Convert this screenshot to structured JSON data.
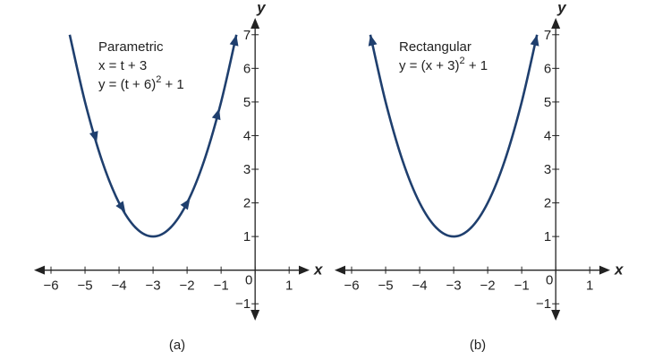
{
  "chart_data": [
    {
      "type": "line",
      "annotation": {
        "title": "Parametric",
        "line1": "x = t + 3",
        "line2": [
          "y = (t + 6)",
          "2",
          " + 1"
        ]
      },
      "caption": "(a)",
      "xlabel": "x",
      "ylabel": "y",
      "x": [
        -5.45,
        -5,
        -4.5,
        -4,
        -3.5,
        -3,
        -2.5,
        -2,
        -1.5,
        -1,
        -0.55
      ],
      "series": [
        {
          "color": "#1f3f6e",
          "values": [
            7.0,
            5,
            3.25,
            2,
            1.25,
            1,
            1.25,
            2,
            3.25,
            5,
            7.0
          ]
        }
      ],
      "direction_arrows_x": [
        -4.7,
        -3.9,
        -2.0,
        -1.1
      ],
      "end_arrows": "end",
      "xlim": [
        -6.5,
        1.6
      ],
      "ylim": [
        -1.5,
        7.5
      ],
      "xticks": [
        {
          "value": -6,
          "label": "−6"
        },
        {
          "value": -5,
          "label": "−5"
        },
        {
          "value": -4,
          "label": "−4"
        },
        {
          "value": -3,
          "label": "−3"
        },
        {
          "value": -2,
          "label": "−2"
        },
        {
          "value": -1,
          "label": "−1"
        },
        0,
        1
      ],
      "yticks": [
        {
          "value": -1,
          "label": "−1"
        },
        1,
        2,
        3,
        4,
        5,
        6,
        7
      ]
    },
    {
      "type": "line",
      "annotation": {
        "title": "Rectangular",
        "line1": [
          "y = (x + 3)",
          "2",
          " + 1"
        ]
      },
      "caption": "(b)",
      "xlabel": "x",
      "ylabel": "y",
      "x": [
        -5.45,
        -5,
        -4.5,
        -4,
        -3.5,
        -3,
        -2.5,
        -2,
        -1.5,
        -1,
        -0.55
      ],
      "series": [
        {
          "color": "#1f3f6e",
          "values": [
            7.0,
            5,
            3.25,
            2,
            1.25,
            1,
            1.25,
            2,
            3.25,
            5,
            7.0
          ]
        }
      ],
      "end_arrows": "both",
      "xlim": [
        -6.5,
        1.6
      ],
      "ylim": [
        -1.5,
        7.5
      ],
      "xticks": [
        {
          "value": -6,
          "label": "−6"
        },
        {
          "value": -5,
          "label": "−5"
        },
        {
          "value": -4,
          "label": "−4"
        },
        {
          "value": -3,
          "label": "−3"
        },
        {
          "value": -2,
          "label": "−2"
        },
        {
          "value": -1,
          "label": "−1"
        },
        0,
        1
      ],
      "yticks": [
        {
          "value": -1,
          "label": "−1"
        },
        1,
        2,
        3,
        4,
        5,
        6,
        7
      ]
    }
  ]
}
